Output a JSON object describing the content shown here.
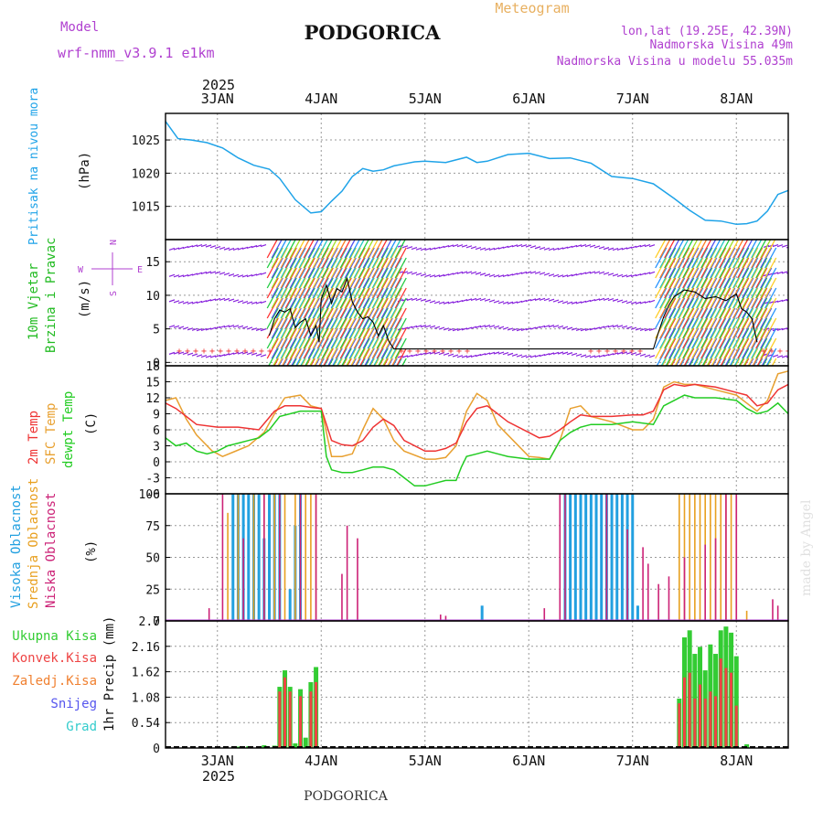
{
  "header": {
    "model_label": "Model",
    "model_name": "wrf-nmm_v3.9.1 e1km",
    "station": "PODGORICA",
    "chart_kind": "Meteogram",
    "coords": "lon,lat (19.25E, 42.39N)",
    "elevation": "Nadmorska Visina 49m",
    "model_elevation": "Nadmorska Visina u modelu 55.035m",
    "year_top": "2025",
    "year_bottom": "2025",
    "footer_station": "PODGORICA",
    "credit": "made by Angel"
  },
  "colors": {
    "pressure": "#1fa3e8",
    "temp2m": "#ee3333",
    "sfc": "#e8a030",
    "dewpt": "#22cc22",
    "lowcloud": "#cc2277",
    "midcloud": "#e8a020",
    "highcloud": "#22a0e0",
    "wind_label": "#22bb22",
    "total_precip": "#33cc33",
    "conv_precip": "#ee4444",
    "frozen": "#f08030",
    "snow": "#5555ee",
    "graupel": "#33cccc",
    "purple": "#b040d0",
    "orange": "#e8b060"
  },
  "chart_data": [
    {
      "type": "line",
      "panel": "pressure",
      "ylabel": [
        "Pritisak na nivou mora",
        "(hPa)"
      ],
      "yticks": [
        1015,
        1020,
        1025
      ],
      "ylim": [
        1010,
        1029
      ],
      "xlim_days": [
        2.5,
        8.5
      ],
      "xtick_labels": [
        "3JAN",
        "4JAN",
        "5JAN",
        "6JAN",
        "7JAN",
        "8JAN"
      ],
      "series": [
        {
          "x": [
            2.5,
            2.62,
            2.75,
            2.9,
            3.05,
            3.2,
            3.35,
            3.5,
            3.6,
            3.75,
            3.9,
            4.0,
            4.1,
            4.2,
            4.3,
            4.4,
            4.5,
            4.6,
            4.7,
            4.8,
            4.9,
            5.0,
            5.2,
            5.4,
            5.5,
            5.6,
            5.8,
            6.0,
            6.2,
            6.4,
            6.6,
            6.8,
            7.0,
            7.2,
            7.4,
            7.55,
            7.7,
            7.85,
            8.0,
            8.1,
            8.2,
            8.3,
            8.4,
            8.5
          ],
          "y": [
            1027.8,
            1025.2,
            1025.0,
            1024.6,
            1023.8,
            1022.3,
            1021.2,
            1020.6,
            1019.2,
            1016.0,
            1014.0,
            1014.2,
            1015.8,
            1017.3,
            1019.5,
            1020.7,
            1020.3,
            1020.5,
            1021.1,
            1021.4,
            1021.7,
            1021.8,
            1021.6,
            1022.4,
            1021.6,
            1021.8,
            1022.8,
            1023.0,
            1022.2,
            1022.3,
            1021.5,
            1019.5,
            1019.2,
            1018.4,
            1016.2,
            1014.4,
            1012.9,
            1012.8,
            1012.3,
            1012.4,
            1012.8,
            1014.3,
            1016.8,
            1017.4
          ]
        }
      ]
    },
    {
      "type": "wind",
      "panel": "wind",
      "ylabel": [
        "10m Vjetar",
        "Brzina i Pravac",
        "(m/s)"
      ],
      "compass": [
        "N",
        "E",
        "S",
        "W"
      ],
      "yticks": [
        0,
        5,
        10,
        15
      ],
      "ylim": [
        -0.5,
        18.3
      ],
      "speed_series": {
        "x": [
          3.5,
          3.55,
          3.6,
          3.65,
          3.7,
          3.75,
          3.8,
          3.85,
          3.9,
          3.95,
          3.98,
          4.0,
          4.05,
          4.1,
          4.15,
          4.2,
          4.25,
          4.3,
          4.35,
          4.4,
          4.45,
          4.5,
          4.55,
          4.6,
          4.65,
          4.7,
          7.2,
          7.25,
          7.3,
          7.35,
          7.4,
          7.5,
          7.6,
          7.7,
          7.8,
          7.9,
          8.0,
          8.05,
          8.1,
          8.15,
          8.2
        ],
        "y": [
          4.0,
          6.5,
          7.8,
          7.5,
          8.0,
          5.2,
          6.0,
          6.5,
          4.0,
          5.5,
          3.0,
          9.5,
          11.5,
          8.8,
          11.0,
          10.5,
          12.5,
          9.0,
          7.5,
          6.5,
          6.8,
          6.0,
          4.0,
          5.5,
          3.2,
          2.0,
          2.0,
          4.5,
          6.8,
          8.5,
          9.8,
          10.8,
          10.5,
          9.5,
          9.8,
          9.2,
          10.2,
          8.0,
          7.5,
          6.5,
          3.0
        ]
      }
    },
    {
      "type": "line",
      "panel": "temperature",
      "ylabel": [
        "2m Temp",
        "SFC Temp",
        "dewpt Temp",
        "(C)"
      ],
      "yticks": [
        -6,
        -3,
        0,
        3,
        6,
        9,
        12,
        15,
        18
      ],
      "ylim": [
        -6,
        18
      ],
      "series": [
        {
          "name": "2m Temp",
          "x": [
            2.5,
            2.6,
            2.7,
            2.8,
            3.0,
            3.2,
            3.4,
            3.55,
            3.65,
            3.8,
            3.9,
            4.0,
            4.1,
            4.2,
            4.3,
            4.4,
            4.5,
            4.6,
            4.7,
            4.8,
            5.0,
            5.1,
            5.2,
            5.3,
            5.4,
            5.5,
            5.6,
            5.7,
            5.8,
            6.0,
            6.1,
            6.2,
            6.3,
            6.4,
            6.5,
            6.6,
            6.8,
            7.0,
            7.1,
            7.2,
            7.3,
            7.4,
            7.5,
            7.6,
            7.8,
            8.0,
            8.1,
            8.2,
            8.3,
            8.4,
            8.5
          ],
          "y": [
            11.0,
            10.0,
            8.5,
            7.0,
            6.5,
            6.5,
            6.0,
            9.5,
            10.5,
            10.5,
            10.2,
            10.0,
            4.0,
            3.2,
            3.0,
            4.0,
            6.5,
            8.0,
            6.8,
            4.0,
            2.0,
            2.0,
            2.5,
            3.5,
            7.5,
            10.0,
            10.5,
            9.0,
            7.5,
            5.5,
            4.5,
            4.8,
            6.0,
            7.5,
            8.8,
            8.5,
            8.5,
            8.8,
            8.8,
            9.5,
            13.5,
            14.5,
            14.2,
            14.5,
            14.0,
            13.0,
            12.5,
            10.5,
            11.0,
            13.5,
            14.5
          ]
        },
        {
          "name": "SFC Temp",
          "x": [
            2.5,
            2.6,
            2.7,
            2.8,
            2.95,
            3.05,
            3.15,
            3.3,
            3.45,
            3.55,
            3.65,
            3.8,
            3.9,
            4.0,
            4.1,
            4.2,
            4.3,
            4.4,
            4.5,
            4.6,
            4.7,
            4.8,
            5.0,
            5.1,
            5.2,
            5.3,
            5.4,
            5.5,
            5.6,
            5.7,
            5.8,
            6.0,
            6.1,
            6.2,
            6.3,
            6.4,
            6.5,
            6.6,
            6.8,
            7.0,
            7.1,
            7.2,
            7.3,
            7.4,
            7.5,
            7.6,
            7.8,
            8.0,
            8.1,
            8.2,
            8.3,
            8.4,
            8.5
          ],
          "y": [
            11.5,
            12.0,
            8.0,
            5.0,
            2.0,
            1.0,
            1.8,
            3.0,
            5.5,
            9.0,
            12.0,
            12.5,
            10.5,
            10.0,
            1.0,
            1.0,
            1.5,
            6.0,
            10.0,
            8.0,
            4.0,
            2.0,
            0.5,
            0.5,
            0.8,
            3.0,
            9.5,
            12.8,
            11.5,
            7.0,
            5.0,
            1.0,
            0.8,
            0.5,
            4.0,
            10.0,
            10.5,
            8.5,
            7.5,
            6.0,
            6.0,
            8.0,
            14.0,
            15.0,
            14.5,
            14.5,
            13.5,
            12.5,
            11.0,
            9.5,
            11.5,
            16.5,
            17.0
          ]
        },
        {
          "name": "dewpt Temp",
          "x": [
            2.5,
            2.6,
            2.7,
            2.8,
            2.9,
            3.0,
            3.1,
            3.2,
            3.3,
            3.4,
            3.5,
            3.6,
            3.7,
            3.8,
            3.9,
            4.0,
            4.05,
            4.1,
            4.2,
            4.3,
            4.4,
            4.5,
            4.6,
            4.7,
            4.8,
            4.9,
            5.0,
            5.1,
            5.2,
            5.3,
            5.35,
            5.4,
            5.5,
            5.6,
            5.7,
            5.8,
            6.0,
            6.2,
            6.3,
            6.4,
            6.5,
            6.6,
            6.8,
            7.0,
            7.2,
            7.3,
            7.4,
            7.5,
            7.6,
            7.8,
            8.0,
            8.1,
            8.2,
            8.3,
            8.4,
            8.5
          ],
          "y": [
            4.5,
            3.0,
            3.5,
            2.0,
            1.5,
            2.0,
            3.0,
            3.5,
            4.0,
            4.5,
            6.0,
            8.5,
            9.0,
            9.5,
            9.5,
            9.5,
            1.0,
            -1.5,
            -2.0,
            -2.0,
            -1.5,
            -1.0,
            -1.0,
            -1.5,
            -3.0,
            -4.5,
            -4.5,
            -4.0,
            -3.5,
            -3.5,
            -1.0,
            1.0,
            1.5,
            2.0,
            1.5,
            1.0,
            0.5,
            0.5,
            4.0,
            5.5,
            6.5,
            7.0,
            7.0,
            7.5,
            7.0,
            10.5,
            11.5,
            12.5,
            12.0,
            12.0,
            11.5,
            10.0,
            9.0,
            9.5,
            11.0,
            9.0
          ]
        }
      ]
    },
    {
      "type": "bar",
      "panel": "cloud",
      "ylabel": [
        "Visoka Oblacnost",
        "Srednja Oblacnost",
        "Niska Oblacnost",
        "(%)"
      ],
      "yticks": [
        0,
        25,
        50,
        75,
        100
      ],
      "ylim": [
        0,
        100
      ],
      "series": [
        {
          "name": "Visoka Oblacnost",
          "x": [
            3.15,
            3.2,
            3.25,
            3.3,
            3.35,
            3.4,
            3.45,
            3.5,
            3.55,
            3.6,
            3.7,
            3.75,
            3.8,
            5.55,
            6.35,
            6.4,
            6.45,
            6.5,
            6.55,
            6.6,
            6.65,
            6.7,
            6.75,
            6.8,
            6.85,
            6.9,
            6.95,
            7.0,
            7.05
          ],
          "values": [
            100,
            100,
            100,
            100,
            100,
            100,
            65,
            100,
            100,
            100,
            25,
            75,
            100,
            12,
            100,
            100,
            100,
            100,
            100,
            100,
            100,
            100,
            100,
            100,
            100,
            100,
            100,
            100,
            12
          ]
        },
        {
          "name": "Srednja Oblacnost",
          "x": [
            3.1,
            3.2,
            3.35,
            3.45,
            3.55,
            3.65,
            3.75,
            3.85,
            3.9,
            3.95,
            7.45,
            7.5,
            7.55,
            7.6,
            7.65,
            7.7,
            7.75,
            7.8,
            7.85,
            7.9,
            7.95,
            8.0,
            8.1
          ],
          "values": [
            85,
            100,
            100,
            100,
            100,
            100,
            100,
            100,
            100,
            100,
            100,
            100,
            100,
            100,
            100,
            100,
            100,
            100,
            100,
            100,
            100,
            100,
            8
          ]
        },
        {
          "name": "Niska Oblacnost",
          "x": [
            2.92,
            3.05,
            3.25,
            3.45,
            3.6,
            3.8,
            3.95,
            4.2,
            4.25,
            4.35,
            5.15,
            5.2,
            6.15,
            6.3,
            6.35,
            6.75,
            6.95,
            7.1,
            7.15,
            7.25,
            7.35,
            7.5,
            7.7,
            7.8,
            7.9,
            8.0,
            8.35,
            8.4
          ],
          "values": [
            10,
            100,
            65,
            100,
            100,
            100,
            100,
            37,
            75,
            65,
            5,
            4,
            10,
            100,
            100,
            100,
            72,
            58,
            45,
            29,
            35,
            50,
            60,
            65,
            100,
            100,
            17,
            12
          ]
        }
      ]
    },
    {
      "type": "bar",
      "panel": "precip",
      "ylabel": [
        "1hr Precip (mm)"
      ],
      "legend": [
        "Ukupna Kisa",
        "Konvek.Kisa",
        "Zaledj.Kisa",
        "Snijeg",
        "Grad"
      ],
      "yticks": [
        0,
        0.54,
        1.08,
        1.62,
        2.16,
        2.7
      ],
      "ylim": [
        0,
        2.7
      ],
      "series": [
        {
          "name": "Ukupna Kisa",
          "x": [
            3.2,
            3.3,
            3.45,
            3.55,
            3.6,
            3.65,
            3.7,
            3.75,
            3.8,
            3.85,
            3.9,
            3.95,
            7.45,
            7.5,
            7.55,
            7.6,
            7.65,
            7.7,
            7.75,
            7.8,
            7.85,
            7.9,
            7.95,
            8.0,
            8.1
          ],
          "values": [
            0.03,
            0.04,
            0.06,
            0.05,
            1.3,
            1.65,
            1.3,
            0.1,
            1.25,
            0.22,
            1.4,
            1.72,
            1.05,
            2.35,
            2.5,
            2.0,
            2.15,
            1.65,
            2.2,
            2.0,
            2.5,
            2.58,
            2.45,
            1.95,
            0.08
          ]
        },
        {
          "name": "Konvek.Kisa",
          "x": [
            3.6,
            3.65,
            3.7,
            3.8,
            3.9,
            3.95,
            7.45,
            7.5,
            7.55,
            7.6,
            7.65,
            7.7,
            7.75,
            7.8,
            7.85,
            7.9,
            7.95,
            8.0
          ],
          "values": [
            1.2,
            1.5,
            1.2,
            1.1,
            1.2,
            1.4,
            0.95,
            1.5,
            1.6,
            1.05,
            1.35,
            1.05,
            1.2,
            1.1,
            1.9,
            1.7,
            1.6,
            0.9
          ]
        }
      ]
    }
  ]
}
